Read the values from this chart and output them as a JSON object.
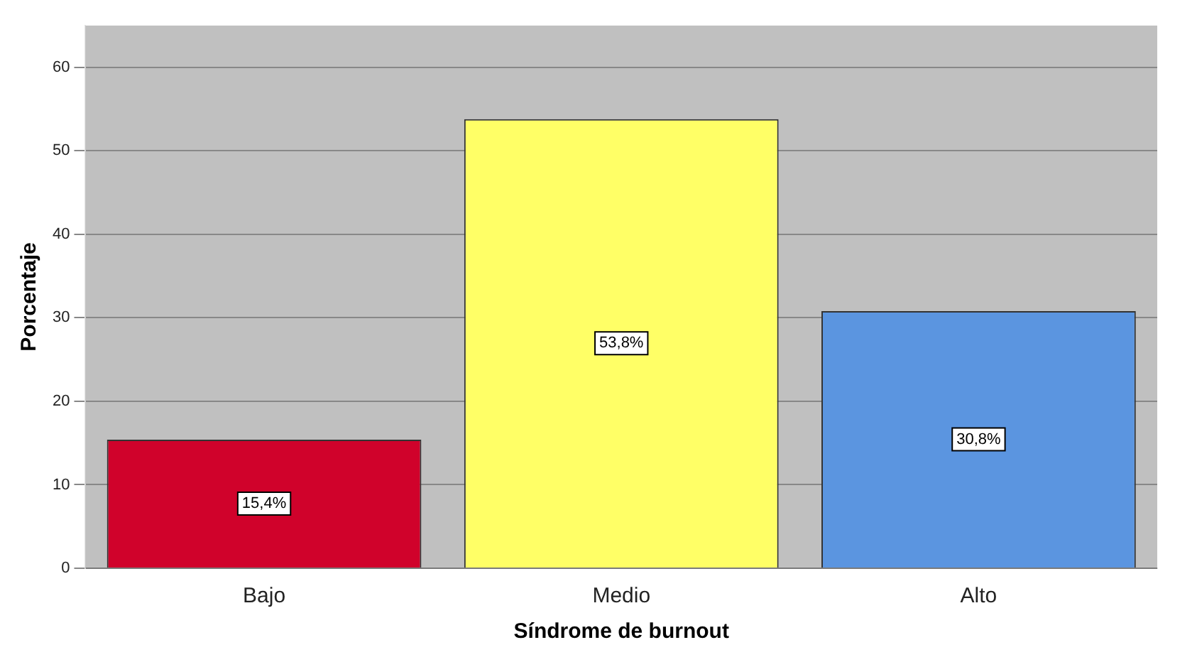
{
  "chart_data": {
    "type": "bar",
    "xlabel": "Síndrome de burnout",
    "ylabel": "Porcentaje",
    "categories": [
      "Bajo",
      "Medio",
      "Alto"
    ],
    "values": [
      15.4,
      53.8,
      30.8
    ],
    "colors": [
      "#d0022b",
      "#ffff66",
      "#5b95e0"
    ],
    "value_labels": [
      "15,4%",
      "53,8%",
      "30,8%"
    ],
    "ylim": [
      0,
      65
    ],
    "yticks": [
      0,
      10,
      20,
      30,
      40,
      50,
      60
    ],
    "grid": "y"
  }
}
